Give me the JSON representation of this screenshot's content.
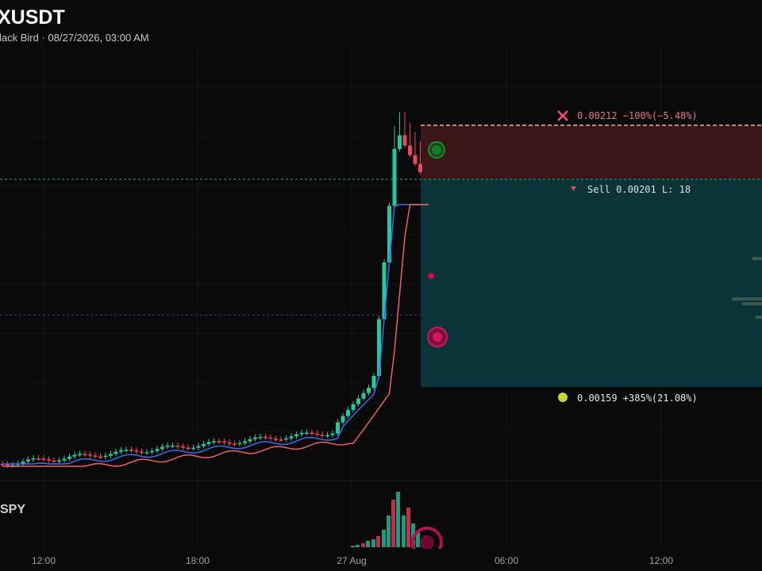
{
  "header": {
    "title": "XUSDT",
    "subtitle": "lack Bird · 08/27/2026, 03:00 AM"
  },
  "position": {
    "stop_label": "0.00212 −100%(−5.48%)",
    "entry_label": "Sell 0.00201 L: 18",
    "target_label": "0.00159 +385%(21.08%)"
  },
  "panes": {
    "volume_label": "SPY"
  },
  "time_axis": {
    "labels": [
      "12:00",
      "18:00",
      "27 Aug",
      "06:00",
      "12:00"
    ]
  }
}
